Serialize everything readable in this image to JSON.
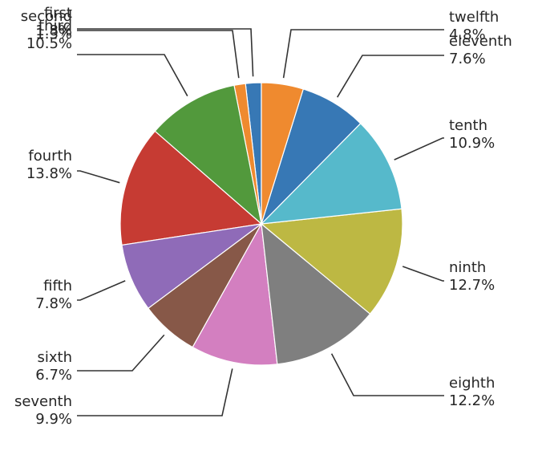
{
  "chart_data": {
    "type": "pie",
    "title": "",
    "start_angle": 90,
    "direction": "clockwise",
    "slices": [
      {
        "label": "first",
        "pct_label": "1.8%",
        "value": 1.8,
        "color": "#3778b5"
      },
      {
        "label": "second",
        "pct_label": "1.3%",
        "value": 1.3,
        "color": "#ef8a2f"
      },
      {
        "label": "third",
        "pct_label": "10.5%",
        "value": 10.5,
        "color": "#52993c"
      },
      {
        "label": "fourth",
        "pct_label": "13.8%",
        "value": 13.8,
        "color": "#c63b33"
      },
      {
        "label": "fifth",
        "pct_label": "7.8%",
        "value": 7.8,
        "color": "#8f6bb8"
      },
      {
        "label": "sixth",
        "pct_label": "6.7%",
        "value": 6.7,
        "color": "#875848"
      },
      {
        "label": "seventh",
        "pct_label": "9.9%",
        "value": 9.9,
        "color": "#d37fc0"
      },
      {
        "label": "eighth",
        "pct_label": "12.2%",
        "value": 12.2,
        "color": "#7f7f7f"
      },
      {
        "label": "ninth",
        "pct_label": "12.7%",
        "value": 12.7,
        "color": "#bdb843"
      },
      {
        "label": "tenth",
        "pct_label": "10.9%",
        "value": 10.9,
        "color": "#56b9cb"
      },
      {
        "label": "eleventh",
        "pct_label": "7.6%",
        "value": 7.6,
        "color": "#3778b5"
      },
      {
        "label": "twelfth",
        "pct_label": "4.8%",
        "value": 4.8,
        "color": "#ef8a2f"
      }
    ]
  }
}
